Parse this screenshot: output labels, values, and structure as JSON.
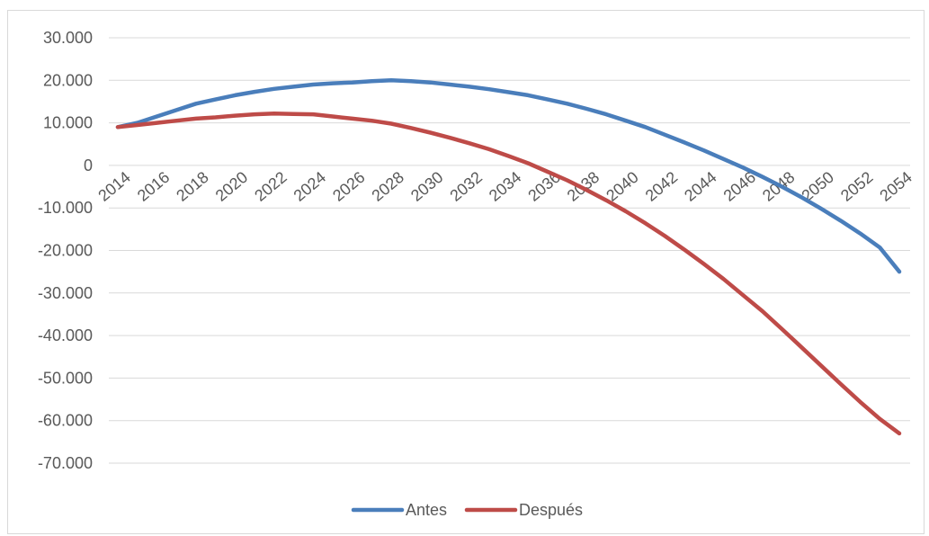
{
  "chart_data": {
    "type": "line",
    "title": "",
    "xlabel": "",
    "ylabel": "",
    "ylim": [
      -70000,
      30000
    ],
    "ytick_step": 10000,
    "yticks": [
      "30.000",
      "20.000",
      "10.000",
      "0",
      "-10.000",
      "-20.000",
      "-30.000",
      "-40.000",
      "-50.000",
      "-60.000",
      "-70.000"
    ],
    "xticks": [
      "2014",
      "2016",
      "2018",
      "2020",
      "2022",
      "2024",
      "2026",
      "2028",
      "2030",
      "2032",
      "2034",
      "2036",
      "2038",
      "2040",
      "2042",
      "2044",
      "2046",
      "2048",
      "2050",
      "2052",
      "2054"
    ],
    "x": [
      2014,
      2015,
      2016,
      2017,
      2018,
      2019,
      2020,
      2021,
      2022,
      2023,
      2024,
      2025,
      2026,
      2027,
      2028,
      2029,
      2030,
      2031,
      2032,
      2033,
      2034,
      2035,
      2036,
      2037,
      2038,
      2039,
      2040,
      2041,
      2042,
      2043,
      2044,
      2045,
      2046,
      2047,
      2048,
      2049,
      2050,
      2051,
      2052,
      2053,
      2054
    ],
    "grid": true,
    "legend": "bottom",
    "series": [
      {
        "name": "Antes",
        "color": "#4a7ebb",
        "values": [
          9000,
          10000,
          11500,
          13000,
          14500,
          15500,
          16500,
          17300,
          18000,
          18500,
          19000,
          19300,
          19500,
          19800,
          20000,
          19800,
          19500,
          19000,
          18500,
          17900,
          17200,
          16500,
          15500,
          14500,
          13300,
          12000,
          10500,
          9000,
          7200,
          5400,
          3500,
          1500,
          -500,
          -2700,
          -5000,
          -7500,
          -10200,
          -13000,
          -16000,
          -19300,
          -25000
        ]
      },
      {
        "name": "Después",
        "color": "#be4b48",
        "values": [
          9000,
          9500,
          10000,
          10500,
          11000,
          11300,
          11700,
          12000,
          12200,
          12100,
          12000,
          11500,
          11000,
          10500,
          9800,
          8800,
          7700,
          6500,
          5200,
          3800,
          2200,
          500,
          -1500,
          -3500,
          -5800,
          -8200,
          -10800,
          -13600,
          -16600,
          -19800,
          -23200,
          -26700,
          -30500,
          -34300,
          -38500,
          -42800,
          -47100,
          -51400,
          -55600,
          -59600,
          -63000
        ]
      }
    ]
  }
}
